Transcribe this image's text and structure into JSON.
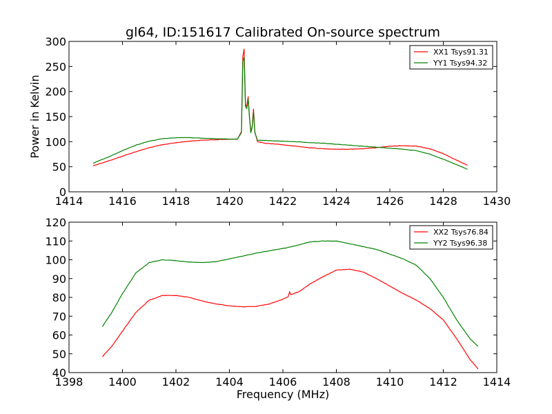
{
  "chart_data": [
    {
      "type": "line",
      "title": "gl64, ID:151617 Calibrated On-source spectrum",
      "xlabel": "",
      "ylabel": "Power in Kelvin",
      "xlim": [
        1414,
        1430
      ],
      "ylim": [
        0,
        300
      ],
      "xticks": [
        1414,
        1416,
        1418,
        1420,
        1422,
        1424,
        1426,
        1428,
        1430
      ],
      "yticks": [
        0,
        50,
        100,
        150,
        200,
        250,
        300
      ],
      "legend_position": "top-right",
      "series": [
        {
          "name": "XX1 Tsys91.31",
          "color": "#ff0000",
          "points": [
            [
              1414.9,
              52
            ],
            [
              1415.5,
              62
            ],
            [
              1416,
              71
            ],
            [
              1416.5,
              80
            ],
            [
              1417,
              88
            ],
            [
              1417.5,
              94
            ],
            [
              1418,
              98
            ],
            [
              1418.5,
              101
            ],
            [
              1419,
              103
            ],
            [
              1419.5,
              104
            ],
            [
              1420,
              105
            ],
            [
              1420.3,
              105
            ],
            [
              1420.45,
              120
            ],
            [
              1420.5,
              270
            ],
            [
              1420.55,
              285
            ],
            [
              1420.6,
              175
            ],
            [
              1420.65,
              170
            ],
            [
              1420.7,
              190
            ],
            [
              1420.75,
              150
            ],
            [
              1420.8,
              120
            ],
            [
              1420.85,
              130
            ],
            [
              1420.9,
              165
            ],
            [
              1420.95,
              120
            ],
            [
              1421.05,
              100
            ],
            [
              1421.3,
              97
            ],
            [
              1421.8,
              95
            ],
            [
              1422.3,
              92
            ],
            [
              1423,
              88
            ],
            [
              1423.5,
              86
            ],
            [
              1424,
              85
            ],
            [
              1424.5,
              85
            ],
            [
              1425,
              86
            ],
            [
              1425.5,
              88
            ],
            [
              1426,
              91
            ],
            [
              1426.5,
              92
            ],
            [
              1427,
              91
            ],
            [
              1427.5,
              86
            ],
            [
              1428,
              76
            ],
            [
              1428.5,
              63
            ],
            [
              1428.9,
              53
            ]
          ]
        },
        {
          "name": "YY1 Tsys94.32",
          "color": "#008000",
          "points": [
            [
              1414.9,
              57
            ],
            [
              1415.5,
              70
            ],
            [
              1416,
              82
            ],
            [
              1416.5,
              93
            ],
            [
              1417,
              101
            ],
            [
              1417.5,
              106
            ],
            [
              1418,
              108
            ],
            [
              1418.5,
              108
            ],
            [
              1419,
              107
            ],
            [
              1419.5,
              106
            ],
            [
              1420,
              105
            ],
            [
              1420.3,
              105
            ],
            [
              1420.45,
              118
            ],
            [
              1420.5,
              260
            ],
            [
              1420.55,
              268
            ],
            [
              1420.6,
              170
            ],
            [
              1420.65,
              166
            ],
            [
              1420.7,
              185
            ],
            [
              1420.75,
              148
            ],
            [
              1420.8,
              118
            ],
            [
              1420.85,
              128
            ],
            [
              1420.9,
              160
            ],
            [
              1420.95,
              118
            ],
            [
              1421.05,
              103
            ],
            [
              1421.5,
              102
            ],
            [
              1422,
              101
            ],
            [
              1422.5,
              100
            ],
            [
              1423,
              98
            ],
            [
              1423.5,
              97
            ],
            [
              1424,
              95
            ],
            [
              1424.5,
              93
            ],
            [
              1425,
              91
            ],
            [
              1425.5,
              89
            ],
            [
              1426,
              87
            ],
            [
              1426.5,
              85
            ],
            [
              1427,
              82
            ],
            [
              1427.5,
              75
            ],
            [
              1428,
              65
            ],
            [
              1428.5,
              54
            ],
            [
              1428.9,
              45
            ]
          ]
        }
      ]
    },
    {
      "type": "line",
      "title": "",
      "xlabel": "Frequency (MHz)",
      "ylabel": "",
      "xlim": [
        1398,
        1414
      ],
      "ylim": [
        40,
        120
      ],
      "xticks": [
        1398,
        1400,
        1402,
        1404,
        1406,
        1408,
        1410,
        1412,
        1414
      ],
      "yticks": [
        40,
        50,
        60,
        70,
        80,
        90,
        100,
        110,
        120
      ],
      "legend_position": "top-right",
      "series": [
        {
          "name": "XX2 Tsys76.84",
          "color": "#ff0000",
          "points": [
            [
              1399.25,
              48.5
            ],
            [
              1399.6,
              54
            ],
            [
              1400,
              62
            ],
            [
              1400.5,
              72
            ],
            [
              1401,
              78.5
            ],
            [
              1401.5,
              81
            ],
            [
              1402,
              81
            ],
            [
              1402.5,
              80
            ],
            [
              1403,
              78
            ],
            [
              1403.5,
              76.5
            ],
            [
              1404,
              75.5
            ],
            [
              1404.5,
              75
            ],
            [
              1405,
              75.2
            ],
            [
              1405.5,
              76.5
            ],
            [
              1406,
              79
            ],
            [
              1406.2,
              80.5
            ],
            [
              1406.25,
              83
            ],
            [
              1406.3,
              81.5
            ],
            [
              1406.6,
              83
            ],
            [
              1407,
              87
            ],
            [
              1407.5,
              91
            ],
            [
              1408,
              94.5
            ],
            [
              1408.5,
              95
            ],
            [
              1409,
              93.5
            ],
            [
              1409.5,
              90
            ],
            [
              1410,
              86
            ],
            [
              1410.5,
              82
            ],
            [
              1411,
              78.5
            ],
            [
              1411.5,
              74
            ],
            [
              1412,
              68
            ],
            [
              1412.5,
              58
            ],
            [
              1413,
              47
            ],
            [
              1413.3,
              42
            ]
          ]
        },
        {
          "name": "YY2 Tsys96.38",
          "color": "#008000",
          "points": [
            [
              1399.25,
              64.5
            ],
            [
              1399.6,
              72
            ],
            [
              1400,
              82
            ],
            [
              1400.5,
              93
            ],
            [
              1401,
              98.5
            ],
            [
              1401.5,
              100
            ],
            [
              1402,
              99.5
            ],
            [
              1402.5,
              98.8
            ],
            [
              1403,
              98.5
            ],
            [
              1403.5,
              99
            ],
            [
              1404,
              100.5
            ],
            [
              1404.5,
              102
            ],
            [
              1405,
              103.5
            ],
            [
              1405.5,
              104.8
            ],
            [
              1406,
              106
            ],
            [
              1406.5,
              107.5
            ],
            [
              1407,
              109.5
            ],
            [
              1407.5,
              110
            ],
            [
              1408,
              110
            ],
            [
              1408.5,
              108.5
            ],
            [
              1409,
              107
            ],
            [
              1409.5,
              105.5
            ],
            [
              1410,
              103
            ],
            [
              1410.5,
              100.5
            ],
            [
              1411,
              97
            ],
            [
              1411.5,
              90
            ],
            [
              1412,
              80
            ],
            [
              1412.5,
              68
            ],
            [
              1413,
              58
            ],
            [
              1413.3,
              54
            ]
          ]
        }
      ]
    }
  ]
}
